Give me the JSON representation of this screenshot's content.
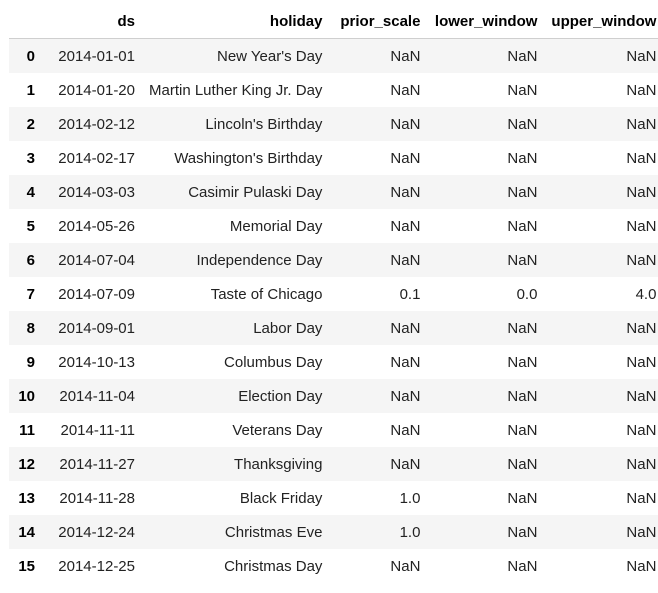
{
  "table": {
    "columns": [
      "",
      "ds",
      "holiday",
      "prior_scale",
      "lower_window",
      "upper_window"
    ],
    "rows": [
      [
        "0",
        "2014-01-01",
        "New Year's Day",
        "NaN",
        "NaN",
        "NaN"
      ],
      [
        "1",
        "2014-01-20",
        "Martin Luther King Jr. Day",
        "NaN",
        "NaN",
        "NaN"
      ],
      [
        "2",
        "2014-02-12",
        "Lincoln's Birthday",
        "NaN",
        "NaN",
        "NaN"
      ],
      [
        "3",
        "2014-02-17",
        "Washington's Birthday",
        "NaN",
        "NaN",
        "NaN"
      ],
      [
        "4",
        "2014-03-03",
        "Casimir Pulaski Day",
        "NaN",
        "NaN",
        "NaN"
      ],
      [
        "5",
        "2014-05-26",
        "Memorial Day",
        "NaN",
        "NaN",
        "NaN"
      ],
      [
        "6",
        "2014-07-04",
        "Independence Day",
        "NaN",
        "NaN",
        "NaN"
      ],
      [
        "7",
        "2014-07-09",
        "Taste of Chicago",
        "0.1",
        "0.0",
        "4.0"
      ],
      [
        "8",
        "2014-09-01",
        "Labor Day",
        "NaN",
        "NaN",
        "NaN"
      ],
      [
        "9",
        "2014-10-13",
        "Columbus Day",
        "NaN",
        "NaN",
        "NaN"
      ],
      [
        "10",
        "2014-11-04",
        "Election Day",
        "NaN",
        "NaN",
        "NaN"
      ],
      [
        "11",
        "2014-11-11",
        "Veterans Day",
        "NaN",
        "NaN",
        "NaN"
      ],
      [
        "12",
        "2014-11-27",
        "Thanksgiving",
        "NaN",
        "NaN",
        "NaN"
      ],
      [
        "13",
        "2014-11-28",
        "Black Friday",
        "1.0",
        "NaN",
        "NaN"
      ],
      [
        "14",
        "2014-12-24",
        "Christmas Eve",
        "1.0",
        "NaN",
        "NaN"
      ],
      [
        "15",
        "2014-12-25",
        "Christmas Day",
        "NaN",
        "NaN",
        "NaN"
      ]
    ]
  }
}
